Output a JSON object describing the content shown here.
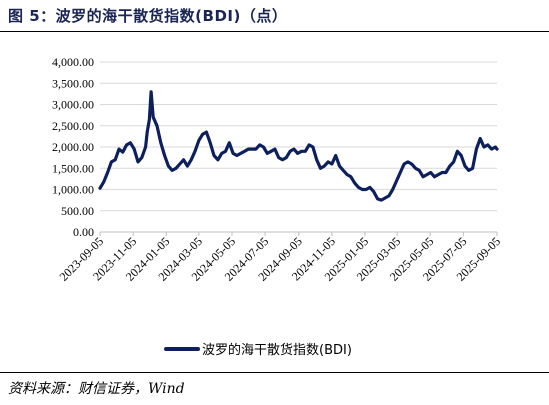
{
  "header": {
    "title": "图 5：波罗的海干散货指数(BDI)（点）"
  },
  "footer": {
    "source": "资料来源：财信证券，Wind"
  },
  "chart_data": {
    "type": "line",
    "title": "",
    "xlabel": "",
    "ylabel": "",
    "ylim": [
      0,
      4000
    ],
    "yticks": [
      "0.00",
      "500.00",
      "1,000.00",
      "1,500.00",
      "2,000.00",
      "2,500.00",
      "3,000.00",
      "3,500.00",
      "4,000.00"
    ],
    "x_tick_labels": [
      "2023-09-05",
      "2023-11-05",
      "2024-01-05",
      "2024-03-05",
      "2024-05-05",
      "2024-07-05",
      "2024-09-05",
      "2024-11-05",
      "2025-01-05",
      "2025-03-05",
      "2025-05-05",
      "2025-07-05",
      "2025-09-05"
    ],
    "grid": true,
    "legend_position": "bottom",
    "line_color": "#0d1f5c",
    "series": [
      {
        "name": "波罗的海干散货指数(BDI)",
        "x": [
          "2023-09-05",
          "2023-09-12",
          "2023-09-19",
          "2023-09-26",
          "2023-10-03",
          "2023-10-10",
          "2023-10-17",
          "2023-10-24",
          "2023-10-31",
          "2023-11-07",
          "2023-11-14",
          "2023-11-21",
          "2023-11-28",
          "2023-12-01",
          "2023-12-05",
          "2023-12-08",
          "2023-12-12",
          "2023-12-19",
          "2023-12-26",
          "2024-01-02",
          "2024-01-09",
          "2024-01-16",
          "2024-01-23",
          "2024-01-30",
          "2024-02-06",
          "2024-02-13",
          "2024-02-20",
          "2024-02-27",
          "2024-03-05",
          "2024-03-12",
          "2024-03-19",
          "2024-03-26",
          "2024-04-02",
          "2024-04-09",
          "2024-04-16",
          "2024-04-23",
          "2024-04-30",
          "2024-05-07",
          "2024-05-14",
          "2024-05-21",
          "2024-05-28",
          "2024-06-04",
          "2024-06-11",
          "2024-06-18",
          "2024-06-25",
          "2024-07-02",
          "2024-07-09",
          "2024-07-16",
          "2024-07-23",
          "2024-07-30",
          "2024-08-06",
          "2024-08-13",
          "2024-08-20",
          "2024-08-27",
          "2024-09-03",
          "2024-09-10",
          "2024-09-17",
          "2024-09-24",
          "2024-10-01",
          "2024-10-08",
          "2024-10-15",
          "2024-10-22",
          "2024-10-29",
          "2024-11-05",
          "2024-11-12",
          "2024-11-19",
          "2024-11-26",
          "2024-12-03",
          "2024-12-10",
          "2024-12-17",
          "2024-12-24",
          "2024-12-31",
          "2025-01-07",
          "2025-01-14",
          "2025-01-21",
          "2025-01-28",
          "2025-02-04",
          "2025-02-11",
          "2025-02-18",
          "2025-02-25",
          "2025-03-04",
          "2025-03-11",
          "2025-03-18",
          "2025-03-25",
          "2025-04-01",
          "2025-04-08",
          "2025-04-15",
          "2025-04-22",
          "2025-04-29",
          "2025-05-06",
          "2025-05-13",
          "2025-05-20",
          "2025-05-27",
          "2025-06-03",
          "2025-06-10",
          "2025-06-17",
          "2025-06-24",
          "2025-07-01",
          "2025-07-08",
          "2025-07-15",
          "2025-07-22",
          "2025-07-29",
          "2025-08-05",
          "2025-08-12",
          "2025-08-19",
          "2025-08-26",
          "2025-09-02",
          "2025-09-05"
        ],
        "values": [
          1030,
          1180,
          1400,
          1650,
          1700,
          1950,
          1880,
          2050,
          2100,
          1950,
          1650,
          1750,
          2000,
          2350,
          2650,
          3300,
          2700,
          2500,
          2100,
          1800,
          1550,
          1450,
          1500,
          1600,
          1700,
          1550,
          1700,
          1900,
          2150,
          2300,
          2350,
          2100,
          1800,
          1700,
          1850,
          1900,
          2100,
          1850,
          1800,
          1850,
          1900,
          1950,
          1950,
          1950,
          2050,
          2000,
          1850,
          1900,
          1950,
          1750,
          1700,
          1750,
          1900,
          1950,
          1850,
          1900,
          1900,
          2050,
          2000,
          1700,
          1500,
          1550,
          1650,
          1600,
          1800,
          1550,
          1450,
          1350,
          1300,
          1150,
          1050,
          1000,
          1000,
          1050,
          950,
          780,
          750,
          800,
          850,
          1000,
          1200,
          1400,
          1600,
          1650,
          1600,
          1500,
          1450,
          1300,
          1350,
          1400,
          1300,
          1350,
          1400,
          1400,
          1550,
          1650,
          1900,
          1800,
          1550,
          1450,
          1500,
          1950,
          2200,
          2000,
          2050,
          1950,
          2000,
          1950
        ]
      }
    ]
  }
}
